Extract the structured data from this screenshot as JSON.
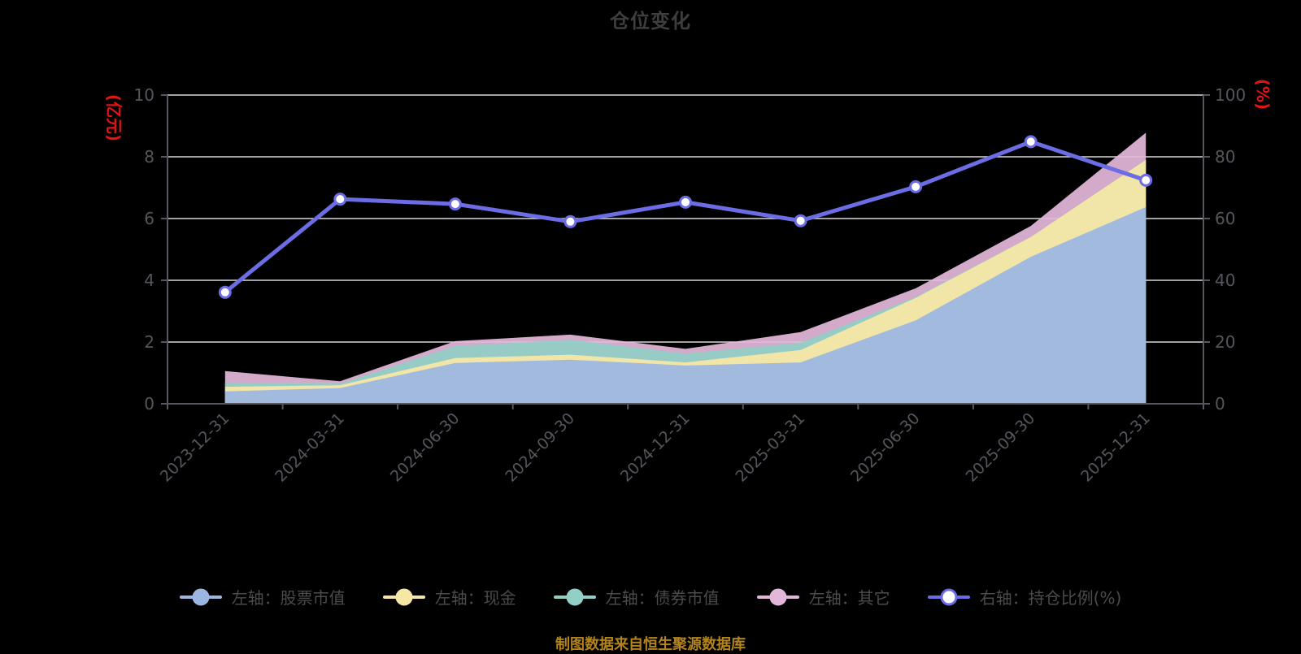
{
  "title": "仓位变化",
  "footer": "制图数据来自恒生聚源数据库",
  "colors": {
    "background": "#000000",
    "title_text": "#3e3e3e",
    "axis_line": "#56575f",
    "axis_tick_label": "#54565c",
    "grid_line": "#d8d8dc",
    "unit_label_red": "#e21515",
    "legend_text": "#4b4b4e",
    "footer_gold": "#b3831c",
    "area_stock_blue": "#9cb6e2",
    "area_cash_yellow": "#f7e7a6",
    "area_bond_teal": "#92cfc6",
    "area_other_pink": "#e3b7d9",
    "ratio_line_indigo": "#6c6ce5"
  },
  "left_axis": {
    "unit": "(亿元)",
    "ticks": [
      "0",
      "2",
      "4",
      "6",
      "8",
      "10"
    ]
  },
  "right_axis": {
    "unit": "(%)",
    "ticks": [
      "0",
      "20",
      "40",
      "60",
      "80",
      "100"
    ]
  },
  "chart_data": {
    "type": "area",
    "title": "仓位变化",
    "categories": [
      "2023-12-31",
      "2024-03-31",
      "2024-06-30",
      "2024-09-30",
      "2024-12-31",
      "2025-03-31",
      "2025-06-30",
      "2025-09-30",
      "2025-12-31"
    ],
    "series": [
      {
        "name": "左轴：股票市值",
        "type": "area",
        "stack": true,
        "axis": "left",
        "color": "#9cb6e2",
        "values": [
          0.4,
          0.51,
          1.32,
          1.43,
          1.24,
          1.34,
          2.7,
          4.76,
          6.37
        ]
      },
      {
        "name": "左轴：现金",
        "type": "area",
        "stack": true,
        "axis": "left",
        "color": "#f7e7a6",
        "values": [
          0.15,
          0.09,
          0.16,
          0.16,
          0.1,
          0.4,
          0.73,
          0.64,
          1.53
        ]
      },
      {
        "name": "左轴：债券市值",
        "type": "area",
        "stack": true,
        "axis": "left",
        "color": "#92cfc6",
        "values": [
          0.14,
          0.05,
          0.39,
          0.48,
          0.29,
          0.24,
          0.03,
          0.0,
          0.0
        ]
      },
      {
        "name": "左轴：其它",
        "type": "area",
        "stack": true,
        "axis": "left",
        "color": "#e3b7d9",
        "values": [
          0.37,
          0.08,
          0.16,
          0.17,
          0.15,
          0.34,
          0.28,
          0.36,
          0.88
        ]
      },
      {
        "name": "右轴：持仓比例(%)",
        "type": "line",
        "axis": "right",
        "color": "#6c6ce5",
        "values": [
          36.1,
          66.3,
          64.7,
          59.0,
          65.3,
          59.3,
          70.3,
          84.9,
          72.4
        ]
      }
    ],
    "left_ylim": [
      0,
      10
    ],
    "right_ylim": [
      0,
      100
    ],
    "left_ylabel": "(亿元)",
    "right_ylabel": "(%)",
    "grid": true,
    "legend_position": "bottom"
  },
  "legend": {
    "items": [
      {
        "label": "左轴：股票市值",
        "line_color": "#9cb6e2",
        "dot_fill": "#9cb6e2",
        "dot_border": "#9cb6e2"
      },
      {
        "label": "左轴：现金",
        "line_color": "#f7e7a6",
        "dot_fill": "#f7e7a6",
        "dot_border": "#f7e7a6"
      },
      {
        "label": "左轴：债券市值",
        "line_color": "#92cfc6",
        "dot_fill": "#92cfc6",
        "dot_border": "#92cfc6"
      },
      {
        "label": "左轴：其它",
        "line_color": "#e3b7d9",
        "dot_fill": "#e3b7d9",
        "dot_border": "#e3b7d9"
      },
      {
        "label": "右轴：持仓比例(%)",
        "line_color": "#6c6ce5",
        "dot_fill": "#ffffff",
        "dot_border": "#6c6ce5"
      }
    ]
  }
}
